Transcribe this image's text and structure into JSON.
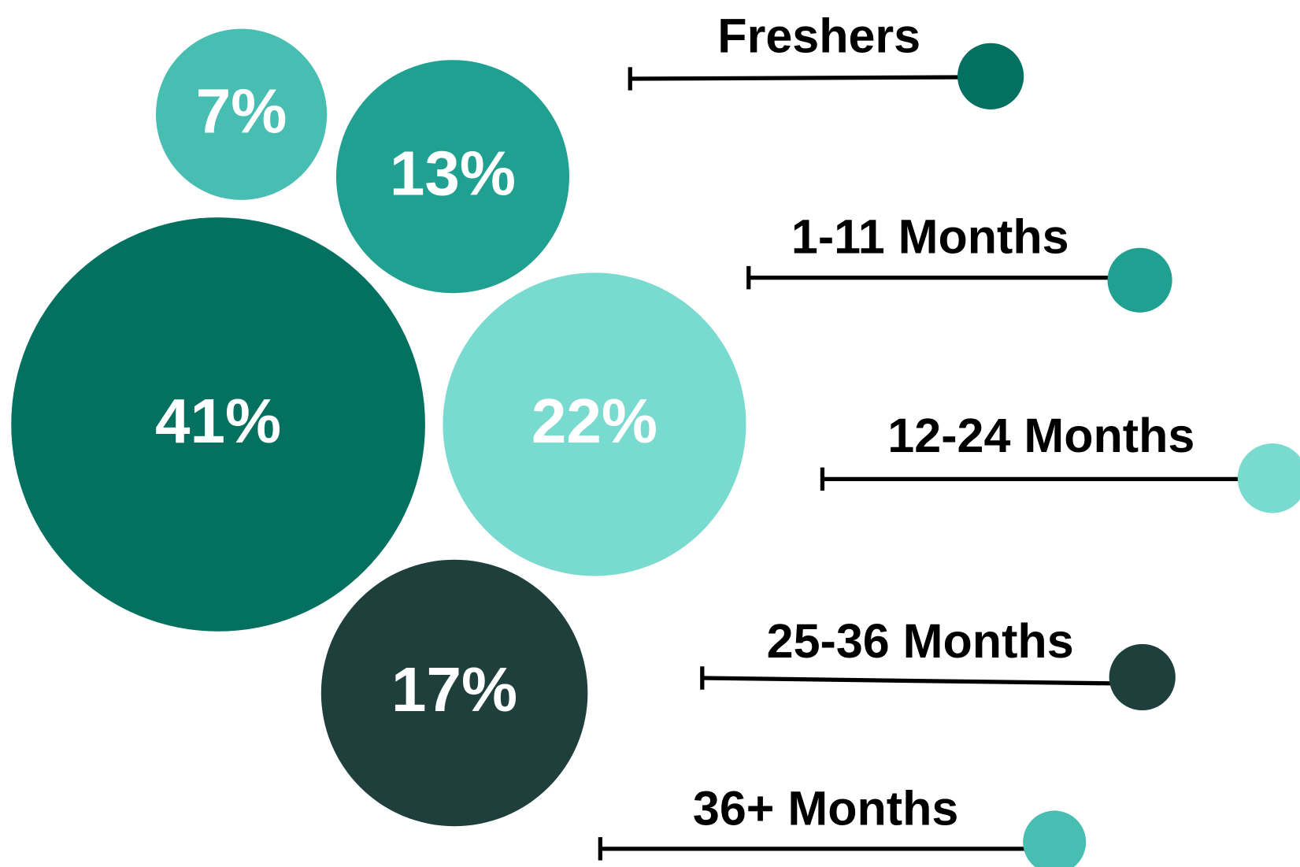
{
  "chart_data": {
    "type": "bubble",
    "categories": [
      "Freshers",
      "1-11 Months",
      "12-24 Months",
      "25-36 Months",
      "36+ Months"
    ],
    "values": [
      41,
      13,
      22,
      17,
      7
    ],
    "value_labels": [
      "41%",
      "13%",
      "22%",
      "17%",
      "7%"
    ],
    "colors": [
      "#037060",
      "#1fa090",
      "#79dbcf",
      "#1e3f3c",
      "#48bdb1"
    ],
    "legend": "right"
  }
}
